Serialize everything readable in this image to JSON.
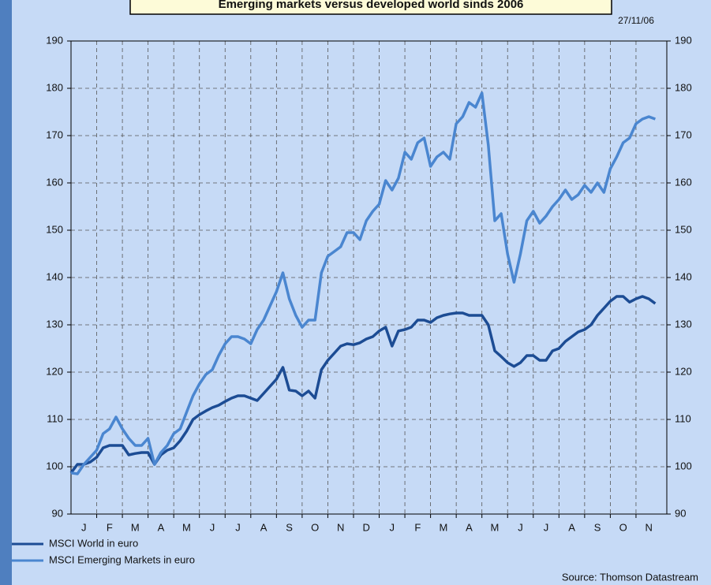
{
  "chart_data": {
    "type": "line",
    "title": "Emerging markets versus developed world sinds 2006",
    "date": "27/11/06",
    "source": "Source: Thomson Datastream",
    "categories": [
      "J",
      "F",
      "M",
      "A",
      "M",
      "J",
      "J",
      "A",
      "S",
      "O",
      "N",
      "D",
      "J",
      "F",
      "M",
      "A",
      "M",
      "J",
      "J",
      "A",
      "S",
      "O",
      "N"
    ],
    "x": [
      0,
      0.25,
      0.5,
      0.75,
      1,
      1.25,
      1.5,
      1.75,
      2,
      2.25,
      2.5,
      2.75,
      3,
      3.25,
      3.5,
      3.75,
      4,
      4.25,
      4.5,
      4.75,
      5,
      5.25,
      5.5,
      5.75,
      6,
      6.25,
      6.5,
      6.75,
      7,
      7.25,
      7.5,
      7.75,
      8,
      8.25,
      8.5,
      8.75,
      9,
      9.25,
      9.5,
      9.75,
      10,
      10.25,
      10.5,
      10.75,
      11,
      11.25,
      11.5,
      11.75,
      12,
      12.25,
      12.5,
      12.75,
      13,
      13.25,
      13.5,
      13.75,
      14,
      14.25,
      14.5,
      14.75,
      15,
      15.25,
      15.5,
      15.75,
      16,
      16.25,
      16.5,
      16.75,
      17,
      17.25,
      17.5,
      17.75,
      18,
      18.25,
      18.5,
      18.75,
      19,
      19.25,
      19.5,
      19.75,
      20,
      20.25,
      20.5,
      20.75,
      21,
      21.25,
      21.5,
      21.75,
      22,
      22.25,
      22.5,
      22.75
    ],
    "xlim": [
      0,
      23.2
    ],
    "ylim": [
      90,
      190
    ],
    "yticks": [
      90,
      100,
      110,
      120,
      130,
      140,
      150,
      160,
      170,
      180,
      190
    ],
    "grid": true,
    "legend": "bottom-left",
    "series": [
      {
        "name": "MSCI World in euro",
        "color": "#1c4c94",
        "values": [
          98.7,
          100.5,
          100.5,
          101,
          102,
          104,
          104.5,
          104.5,
          104.5,
          102.5,
          102.8,
          103,
          103,
          100.5,
          102.5,
          103.5,
          104,
          105.5,
          107.5,
          110,
          111,
          111.8,
          112.5,
          113,
          113.8,
          114.5,
          115,
          115,
          114.5,
          114,
          115.5,
          117,
          118.5,
          121,
          116.2,
          116,
          115,
          116,
          114.5,
          120.5,
          122.5,
          124,
          125.5,
          126,
          125.8,
          126.2,
          127,
          127.5,
          128.7,
          129.5,
          125.5,
          128.7,
          129,
          129.5,
          131,
          131,
          130.5,
          131.5,
          132,
          132.3,
          132.5,
          132.5,
          132,
          132,
          132,
          130,
          124.5,
          123.3,
          122,
          121.2,
          122,
          123.5,
          123.5,
          122.5,
          122.5,
          124.5,
          125,
          126.5,
          127.5,
          128.5,
          129,
          130,
          132,
          133.5,
          135,
          136,
          136,
          134.8,
          135.5,
          136,
          135.5,
          134.5
        ]
      },
      {
        "name": "MSCI Emerging Markets in euro",
        "color": "#4a86d0",
        "values": [
          98.7,
          98.5,
          100.5,
          102,
          103.5,
          107,
          108,
          110.5,
          108,
          106,
          104.5,
          104.5,
          106,
          100.5,
          103,
          104.5,
          107,
          108,
          111.5,
          115,
          117.5,
          119.5,
          120.5,
          123.5,
          126,
          127.5,
          127.5,
          127,
          126,
          129,
          131,
          134,
          137,
          141,
          135.5,
          132,
          129.5,
          131,
          131,
          141,
          144.5,
          145.5,
          146.5,
          149.5,
          149.5,
          148,
          152,
          154,
          155.5,
          160.5,
          158.5,
          161,
          166.5,
          165,
          168.5,
          169.5,
          163.5,
          165.5,
          166.5,
          165,
          172.5,
          174,
          177,
          176,
          179,
          168,
          152,
          153.5,
          145,
          139,
          145,
          152,
          154,
          151.5,
          153,
          155,
          156.5,
          158.5,
          156.5,
          157.5,
          159.5,
          158,
          160,
          158,
          163,
          165.5,
          168.5,
          169.5,
          172.5,
          173.5,
          174,
          173.5
        ]
      }
    ]
  }
}
